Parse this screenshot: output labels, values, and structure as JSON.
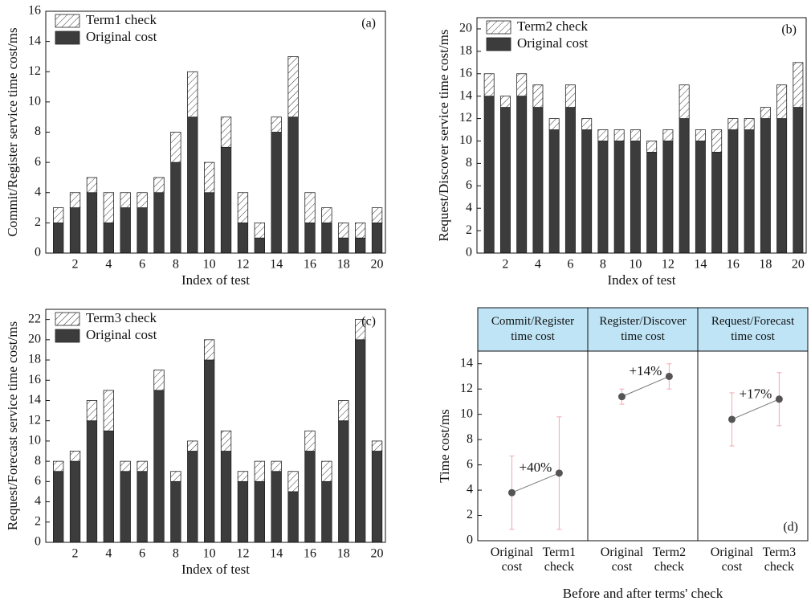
{
  "chart_data": [
    {
      "type": "bar",
      "panel_label": "(a)",
      "y_label": "Commit/Register service time cost/ms",
      "x_label": "Index of test",
      "x": [
        1,
        2,
        3,
        4,
        5,
        6,
        7,
        8,
        9,
        10,
        11,
        12,
        13,
        14,
        15,
        16,
        17,
        18,
        19,
        20
      ],
      "xlim": [
        0.25,
        20.5
      ],
      "xticks": [
        2,
        4,
        6,
        8,
        10,
        12,
        14,
        16,
        18,
        20
      ],
      "ylim": [
        0,
        16
      ],
      "yticks": [
        0,
        2,
        4,
        6,
        8,
        10,
        12,
        14,
        16
      ],
      "legend": "upper left",
      "series": [
        {
          "name": "Original cost",
          "color": "#3c3c3c",
          "values": [
            2,
            3,
            4,
            2,
            3,
            3,
            4,
            6,
            9,
            4,
            7,
            2,
            1,
            8,
            9,
            2,
            2,
            1,
            1,
            2
          ]
        },
        {
          "name": "Term1 check",
          "color": "#ffffff",
          "hatch": true,
          "values": [
            1,
            1,
            1,
            2,
            1,
            1,
            1,
            2,
            3,
            2,
            2,
            2,
            1,
            1,
            4,
            2,
            1,
            1,
            1,
            1
          ]
        }
      ]
    },
    {
      "type": "bar",
      "panel_label": "(b)",
      "y_label": "Request/Discover service time cost/ms",
      "x_label": "Index of test",
      "x": [
        1,
        2,
        3,
        4,
        5,
        6,
        7,
        8,
        9,
        10,
        11,
        12,
        13,
        14,
        15,
        16,
        17,
        18,
        19,
        20
      ],
      "xlim": [
        0.25,
        20.5
      ],
      "xticks": [
        2,
        4,
        6,
        8,
        10,
        12,
        14,
        16,
        18,
        20
      ],
      "ylim": [
        0,
        21
      ],
      "yticks": [
        0,
        2,
        4,
        6,
        8,
        10,
        12,
        14,
        16,
        18,
        20
      ],
      "legend": "upper left",
      "series": [
        {
          "name": "Original cost",
          "color": "#3c3c3c",
          "values": [
            14,
            13,
            14,
            13,
            11,
            13,
            11,
            10,
            10,
            10,
            9,
            10,
            12,
            10,
            9,
            11,
            11,
            12,
            12,
            13
          ]
        },
        {
          "name": "Term2 check",
          "color": "#ffffff",
          "hatch": true,
          "values": [
            2,
            1,
            2,
            2,
            1,
            2,
            1,
            1,
            1,
            1,
            1,
            1,
            3,
            1,
            2,
            1,
            1,
            1,
            3,
            4
          ]
        }
      ]
    },
    {
      "type": "bar",
      "panel_label": "(c)",
      "y_label": "Request/Forecast service time cost/ms",
      "x_label": "Index of test",
      "x": [
        1,
        2,
        3,
        4,
        5,
        6,
        7,
        8,
        9,
        10,
        11,
        12,
        13,
        14,
        15,
        16,
        17,
        18,
        19,
        20
      ],
      "xlim": [
        0.25,
        20.5
      ],
      "xticks": [
        2,
        4,
        6,
        8,
        10,
        12,
        14,
        16,
        18,
        20
      ],
      "ylim": [
        0,
        23
      ],
      "yticks": [
        0,
        2,
        4,
        6,
        8,
        10,
        12,
        14,
        16,
        18,
        20,
        22
      ],
      "legend": "upper left",
      "series": [
        {
          "name": "Original cost",
          "color": "#3c3c3c",
          "values": [
            7,
            8,
            12,
            11,
            7,
            7,
            15,
            6,
            9,
            18,
            9,
            6,
            6,
            7,
            5,
            9,
            6,
            12,
            20,
            9
          ]
        },
        {
          "name": "Term3 check",
          "color": "#ffffff",
          "hatch": true,
          "values": [
            1,
            1,
            2,
            4,
            1,
            1,
            2,
            1,
            1,
            2,
            2,
            1,
            2,
            1,
            2,
            2,
            2,
            2,
            2,
            1
          ]
        }
      ]
    },
    {
      "type": "errorbar",
      "panel_label": "(d)",
      "y_label": "Time cost/ms",
      "x_label": "Before and after terms' check",
      "groups": [
        "Commit/Register time cost",
        "Register/Discover time cost",
        "Request/Forecast time cost"
      ],
      "header_color": "#bfe4f6",
      "categories": [
        "Original cost",
        "Term1 check",
        "Original cost",
        "Term2 check",
        "Original cost",
        "Term3 check"
      ],
      "values": [
        3.8,
        5.35,
        11.4,
        13.0,
        9.6,
        11.2
      ],
      "errors": [
        2.9,
        4.45,
        0.6,
        1.0,
        2.1,
        2.1
      ],
      "annotations": [
        "+40%",
        "+14%",
        "+17%"
      ],
      "color": "#555555",
      "error_color": "#f2a7b0",
      "ylim": [
        0,
        15
      ],
      "yticks": [
        0,
        2,
        4,
        6,
        8,
        10,
        12,
        14
      ]
    }
  ]
}
